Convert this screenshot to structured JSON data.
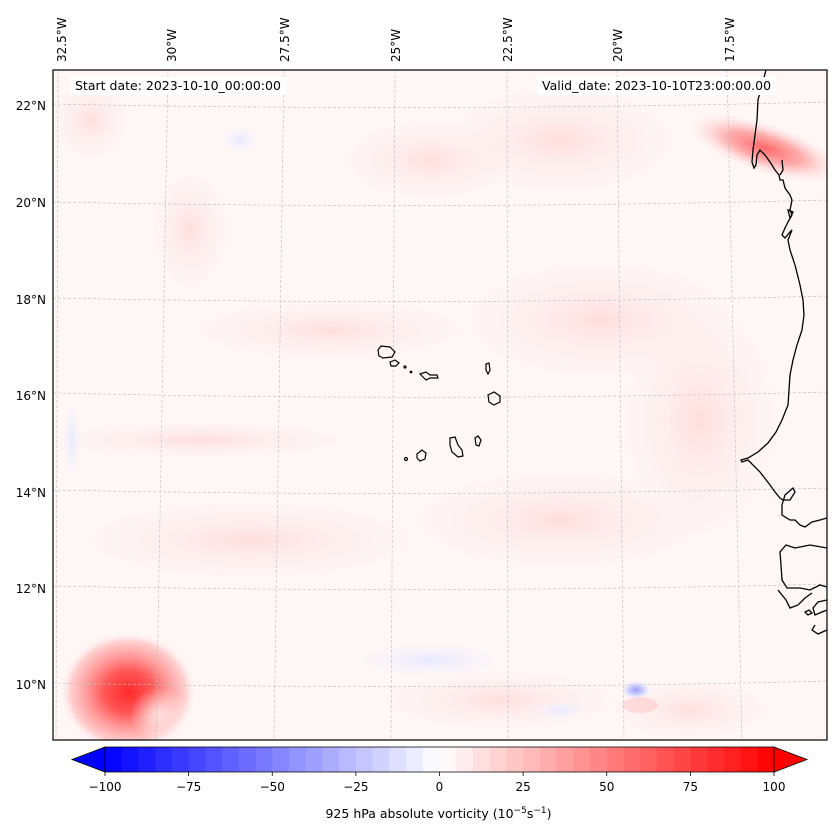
{
  "figure": {
    "start_date_label": "Start date: 2023-10-10_00:00:00",
    "valid_date_label": "Valid_date: 2023-10-10T23:00:00.00",
    "colorbar_label_main": "925 hPa absolute vorticity (10",
    "colorbar_label_exp1": "−5",
    "colorbar_label_mid": "s",
    "colorbar_label_exp2": "−1",
    "colorbar_label_end": ")"
  },
  "map": {
    "projection": "Lambert-like conic",
    "lon_ticks": [
      "32.5°W",
      "30°W",
      "27.5°W",
      "25°W",
      "22.5°W",
      "20°W",
      "17.5°W"
    ],
    "lat_ticks": [
      "22°N",
      "20°N",
      "18°N",
      "16°N",
      "14°N",
      "12°N",
      "10°N"
    ],
    "gridlines": true,
    "features": [
      "West African coastline",
      "Cape Verde islands",
      "Canary/Cape Blanc region"
    ],
    "field": "925 hPa absolute vorticity",
    "notable_features": [
      {
        "name": "cyclonic vorticity maximum",
        "lat": 9.8,
        "lon": -30.5,
        "value_approx": 80
      },
      {
        "name": "coastal vorticity band",
        "lat": 21.2,
        "lon": -17.2,
        "value_approx": 40
      },
      {
        "name": "negative vorticity patch",
        "lat": 10.1,
        "lon": -20.0,
        "value_approx": -30
      }
    ]
  },
  "chart_data": {
    "type": "heatmap",
    "title": "",
    "variable": "925 hPa absolute vorticity",
    "units": "10^-5 s^-1",
    "colormap": "bwr",
    "colorbar": {
      "range": [
        -100,
        100
      ],
      "extend": "both",
      "ticks": [
        -100,
        -75,
        -50,
        -25,
        0,
        25,
        50,
        75,
        100
      ],
      "tick_labels": [
        "−100",
        "−75",
        "−50",
        "−25",
        "0",
        "25",
        "50",
        "75",
        "100"
      ],
      "levels_step": 5,
      "orientation": "horizontal",
      "placement": "bottom"
    },
    "x_axis": {
      "label": "longitude",
      "range": [
        -32.7,
        -15.8
      ],
      "ticks": [
        -32.5,
        -30,
        -27.5,
        -25,
        -22.5,
        -20,
        -17.5
      ]
    },
    "y_axis": {
      "label": "latitude",
      "range": [
        8.9,
        22.7
      ],
      "ticks": [
        10,
        12,
        14,
        16,
        18,
        20,
        22
      ]
    },
    "colors": {
      "negative_max": "#0000ff",
      "zero": "#ffffff",
      "positive_max": "#ff0000"
    }
  }
}
